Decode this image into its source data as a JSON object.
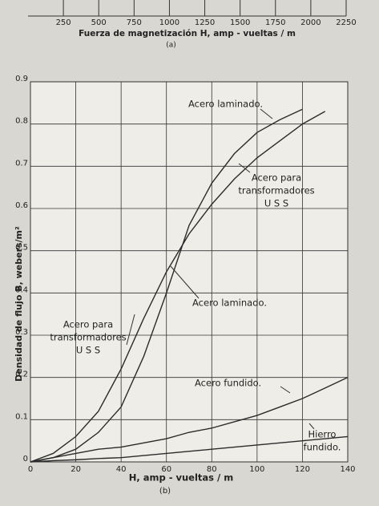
{
  "chart_data": [
    {
      "type": "axis",
      "x_label": "Fuerza de magnetización H, amp - vueltas / m",
      "subtitle": "(a)",
      "xlim": [
        0,
        2250
      ],
      "xticks": [
        250,
        500,
        750,
        1000,
        1250,
        1500,
        1750,
        2000,
        2250
      ]
    },
    {
      "type": "line",
      "x_label": "H, amp - vueltas / m",
      "y_label": "Densidad de flujo B, webers/m²",
      "subtitle": "(b)",
      "xlim": [
        0,
        140
      ],
      "ylim": [
        0,
        0.9
      ],
      "xticks": [
        0,
        20,
        40,
        60,
        80,
        100,
        120,
        140
      ],
      "yticks": [
        0,
        0.1,
        0.2,
        0.3,
        0.4,
        0.5,
        0.6,
        0.7,
        0.8,
        0.9
      ],
      "grid": true,
      "x": [
        0,
        10,
        20,
        30,
        40,
        50,
        60,
        70,
        80,
        90,
        100,
        110,
        120,
        130,
        140
      ],
      "series": [
        {
          "name": "Acero laminado",
          "color": "#2b2b2b",
          "values": [
            0,
            0.01,
            0.03,
            0.07,
            0.13,
            0.25,
            0.4,
            0.56,
            0.66,
            0.73,
            0.78,
            0.81,
            0.835,
            null,
            null
          ]
        },
        {
          "name": "Acero para transformadores USS",
          "color": "#2b2b2b",
          "values": [
            0,
            0.02,
            0.06,
            0.12,
            0.22,
            0.34,
            0.45,
            0.54,
            0.61,
            0.67,
            0.72,
            0.76,
            0.8,
            0.83,
            null
          ]
        },
        {
          "name": "Acero fundido",
          "color": "#2b2b2b",
          "values": [
            0,
            0.01,
            0.02,
            0.03,
            0.035,
            0.045,
            0.055,
            0.07,
            0.08,
            0.095,
            0.11,
            0.13,
            0.15,
            0.175,
            0.2
          ]
        },
        {
          "name": "Hierro fundido",
          "color": "#2b2b2b",
          "values": [
            0,
            0.003,
            0.005,
            0.008,
            0.01,
            0.015,
            0.02,
            0.025,
            0.03,
            0.035,
            0.04,
            0.045,
            0.05,
            0.055,
            0.06
          ]
        }
      ],
      "annotations": [
        {
          "lines": [
            "Acero laminado."
          ]
        },
        {
          "lines": [
            "Acero para",
            "transformadores",
            "U S S"
          ]
        },
        {
          "lines": [
            "Acero laminado."
          ]
        },
        {
          "lines": [
            "Acero para",
            "transformadores",
            "U S S"
          ]
        },
        {
          "lines": [
            "Acero fundido."
          ]
        },
        {
          "lines": [
            "Hierro",
            "fundido."
          ]
        }
      ]
    }
  ]
}
